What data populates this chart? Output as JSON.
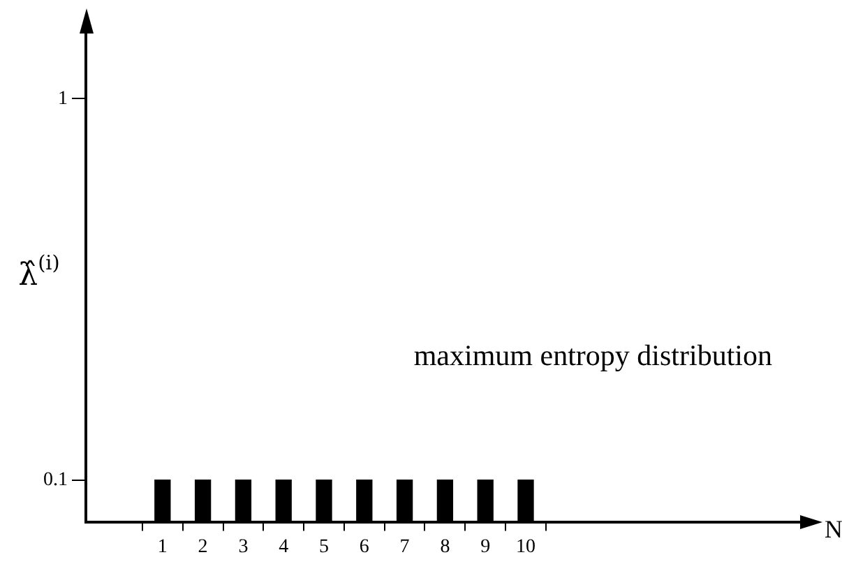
{
  "chart_data": {
    "type": "bar",
    "x": [
      1,
      2,
      3,
      4,
      5,
      6,
      7,
      8,
      9,
      10
    ],
    "values": [
      0.1,
      0.1,
      0.1,
      0.1,
      0.1,
      0.1,
      0.1,
      0.1,
      0.1,
      0.1
    ],
    "color": "#000000",
    "xlim": [
      -0.9,
      16.8
    ],
    "xticks": [
      1,
      2,
      3,
      4,
      5,
      6,
      7,
      8,
      9,
      10
    ],
    "ylim": [
      0,
      1.16
    ],
    "yticks": [
      0.1,
      1
    ],
    "xlabel": "N",
    "ylabel": "λ̂$^{(i)}$",
    "annotations": [
      "maximum entropy distribution"
    ]
  }
}
